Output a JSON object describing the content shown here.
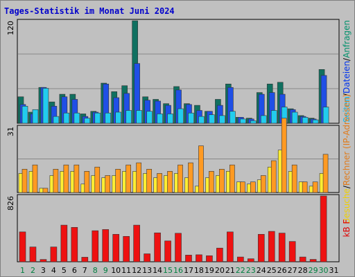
{
  "title": "Tages-Statistik im Monat Juni 2024",
  "chart_data": [
    {
      "type": "bar",
      "name": "requests-files-pages",
      "ylabel_max": "120",
      "ymax": 120,
      "right_label": {
        "parts": [
          "Seiten",
          "/",
          "Dateien",
          "/",
          "Anfragen"
        ],
        "colors": [
          "#00c0ff",
          "#000000",
          "#0033ee",
          "#000000",
          "#00916b"
        ]
      },
      "colors": {
        "anfragen": "#107060",
        "dateien": "#1f4fe6",
        "seiten": "#22ccee"
      },
      "series": [
        {
          "name": "Anfragen",
          "values": [
            31,
            13,
            42,
            25,
            34,
            34,
            11,
            14,
            47,
            37,
            44,
            120,
            31,
            28,
            23,
            43,
            23,
            21,
            14,
            28,
            46,
            7,
            6,
            36,
            46,
            48,
            17,
            9,
            6,
            63
          ]
        },
        {
          "name": "Dateien",
          "values": [
            22,
            11,
            42,
            20,
            31,
            28,
            8,
            13,
            46,
            30,
            35,
            70,
            27,
            26,
            21,
            39,
            22,
            15,
            14,
            21,
            42,
            7,
            5,
            34,
            36,
            34,
            16,
            8,
            5,
            56
          ]
        },
        {
          "name": "Seiten",
          "values": [
            20,
            16,
            41,
            8,
            12,
            12,
            6,
            12,
            12,
            13,
            15,
            15,
            14,
            11,
            11,
            17,
            12,
            8,
            10,
            9,
            14,
            5,
            3,
            9,
            15,
            19,
            13,
            7,
            4,
            19
          ]
        }
      ]
    },
    {
      "type": "bar",
      "name": "visits-hosts",
      "ylabel_max": "31",
      "ymax": 31,
      "right_label": {
        "parts": [
          "Besuche",
          "/",
          "Rechner (IP-Adressen)"
        ],
        "colors": [
          "#f0d000",
          "#000000",
          "#e07a1a"
        ]
      },
      "colors": {
        "besuche": "#ffee33",
        "rechner": "#ff9a22"
      },
      "series": [
        {
          "name": "Besuche",
          "values": [
            9,
            10,
            2,
            8,
            10,
            10,
            4,
            8,
            7,
            8,
            10,
            10,
            9,
            7,
            8,
            9,
            7,
            3,
            7,
            8,
            10,
            5,
            4,
            6,
            12,
            20,
            10,
            5,
            3,
            9
          ]
        },
        {
          "name": "Rechner",
          "values": [
            11,
            13,
            2,
            11,
            13,
            13,
            10,
            12,
            8,
            11,
            13,
            14,
            11,
            9,
            10,
            13,
            14,
            22,
            10,
            11,
            13,
            5,
            5,
            8,
            15,
            35,
            13,
            5,
            5,
            18
          ]
        }
      ]
    },
    {
      "type": "bar",
      "name": "kbytes",
      "ylabel_max": "826",
      "ymax": 826,
      "right_label": {
        "parts": [
          "kB F"
        ],
        "colors": [
          "#e00000"
        ]
      },
      "colors": {
        "kb": "#ee1111"
      },
      "series": [
        {
          "name": "kB F",
          "values": [
            375,
            186,
            29,
            186,
            460,
            432,
            57,
            390,
            405,
            345,
            319,
            460,
            100,
            363,
            262,
            358,
            84,
            88,
            76,
            172,
            375,
            60,
            38,
            345,
            382,
            360,
            255,
            60,
            30,
            826
          ]
        }
      ]
    }
  ],
  "x_labels": [
    "1",
    "2",
    "3",
    "4",
    "5",
    "6",
    "7",
    "8",
    "9",
    "10",
    "11",
    "12",
    "13",
    "14",
    "15",
    "16",
    "17",
    "18",
    "19",
    "20",
    "21",
    "22",
    "23",
    "24",
    "25",
    "26",
    "27",
    "28",
    "29",
    "30",
    "31"
  ],
  "weekend_days": [
    1,
    2,
    8,
    9,
    15,
    16,
    22,
    23,
    29,
    30
  ],
  "colors": {
    "weekend": "#008040",
    "weekday": "#000000",
    "panel": "#c0c0c0",
    "grid": "#888888",
    "title": "#0000cc"
  }
}
